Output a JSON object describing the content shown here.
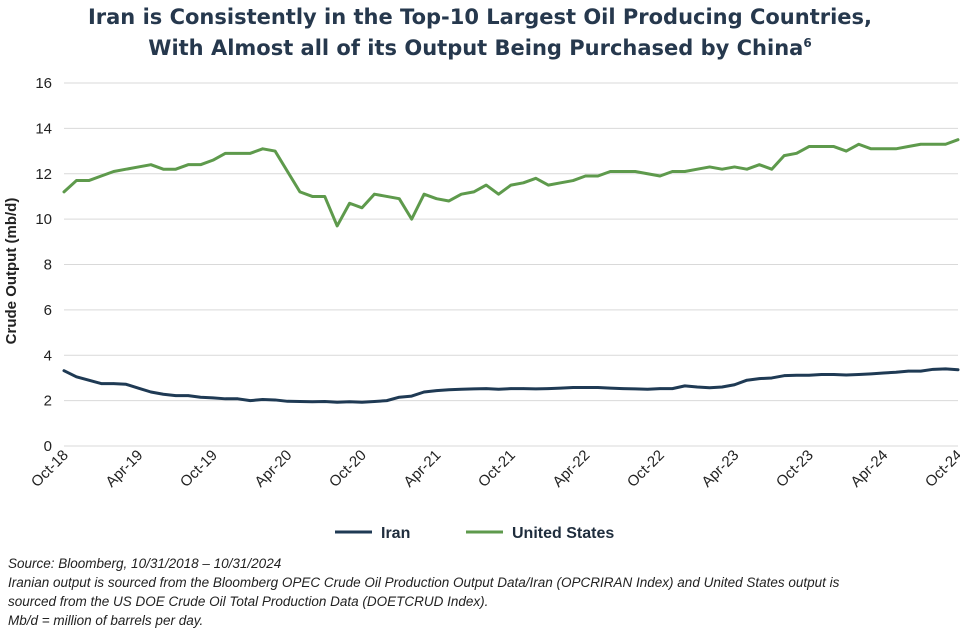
{
  "chart_data": {
    "type": "line",
    "title_line1": "Iran is Consistently in the Top-10 Largest Oil Producing Countries,",
    "title_line2": "With Almost all of its Output Being Purchased by China",
    "title_footnote": "6",
    "ylabel": "Crude Output (mb/d)",
    "xlabel": "",
    "ylim": [
      0,
      16
    ],
    "yticks": [
      "0",
      "2",
      "4",
      "6",
      "8",
      "10",
      "12",
      "14",
      "16"
    ],
    "xticks": [
      "Oct-18",
      "Apr-19",
      "Oct-19",
      "Apr-20",
      "Oct-20",
      "Apr-21",
      "Oct-21",
      "Apr-22",
      "Oct-22",
      "Apr-23",
      "Oct-23",
      "Apr-24",
      "Oct-24"
    ],
    "grid": "horizontal",
    "legend_position": "bottom",
    "series": [
      {
        "name": "Iran",
        "color": "#1f3a54",
        "values": [
          3.32,
          3.05,
          2.9,
          2.75,
          2.75,
          2.72,
          2.55,
          2.38,
          2.28,
          2.22,
          2.22,
          2.15,
          2.12,
          2.08,
          2.08,
          2.0,
          2.05,
          2.03,
          1.97,
          1.96,
          1.95,
          1.96,
          1.93,
          1.95,
          1.93,
          1.96,
          2.0,
          2.15,
          2.2,
          2.38,
          2.44,
          2.48,
          2.5,
          2.52,
          2.53,
          2.5,
          2.53,
          2.53,
          2.52,
          2.53,
          2.55,
          2.58,
          2.58,
          2.58,
          2.55,
          2.53,
          2.52,
          2.5,
          2.53,
          2.53,
          2.65,
          2.6,
          2.57,
          2.6,
          2.7,
          2.9,
          2.97,
          3.0,
          3.1,
          3.12,
          3.12,
          3.15,
          3.15,
          3.13,
          3.15,
          3.18,
          3.22,
          3.25,
          3.3,
          3.3,
          3.38,
          3.4,
          3.36
        ]
      },
      {
        "name": "United States",
        "color": "#5e9a4c",
        "values": [
          11.2,
          11.7,
          11.7,
          11.9,
          12.1,
          12.2,
          12.3,
          12.4,
          12.2,
          12.2,
          12.4,
          12.4,
          12.6,
          12.9,
          12.9,
          12.9,
          13.1,
          13.0,
          12.1,
          11.2,
          11.0,
          11.0,
          9.7,
          10.7,
          10.5,
          11.1,
          11.0,
          10.9,
          10.0,
          11.1,
          10.9,
          10.8,
          11.1,
          11.2,
          11.5,
          11.1,
          11.5,
          11.6,
          11.8,
          11.5,
          11.6,
          11.7,
          11.9,
          11.9,
          12.1,
          12.1,
          12.1,
          12.0,
          11.9,
          12.1,
          12.1,
          12.2,
          12.3,
          12.2,
          12.3,
          12.2,
          12.4,
          12.2,
          12.8,
          12.9,
          13.2,
          13.2,
          13.2,
          13.0,
          13.3,
          13.1,
          13.1,
          13.1,
          13.2,
          13.3,
          13.3,
          13.3,
          13.5
        ]
      }
    ]
  },
  "notes": {
    "source": "Source: Bloomberg, 10/31/2018 – 10/31/2024",
    "line2": "Iranian output is sourced from the Bloomberg OPEC Crude Oil Production Output Data/Iran (OPCRIRAN Index) and United States output is",
    "line3": "sourced from the US DOE Crude Oil Total Production Data (DOETCRUD Index).",
    "line4": "Mb/d = million of barrels per day."
  }
}
